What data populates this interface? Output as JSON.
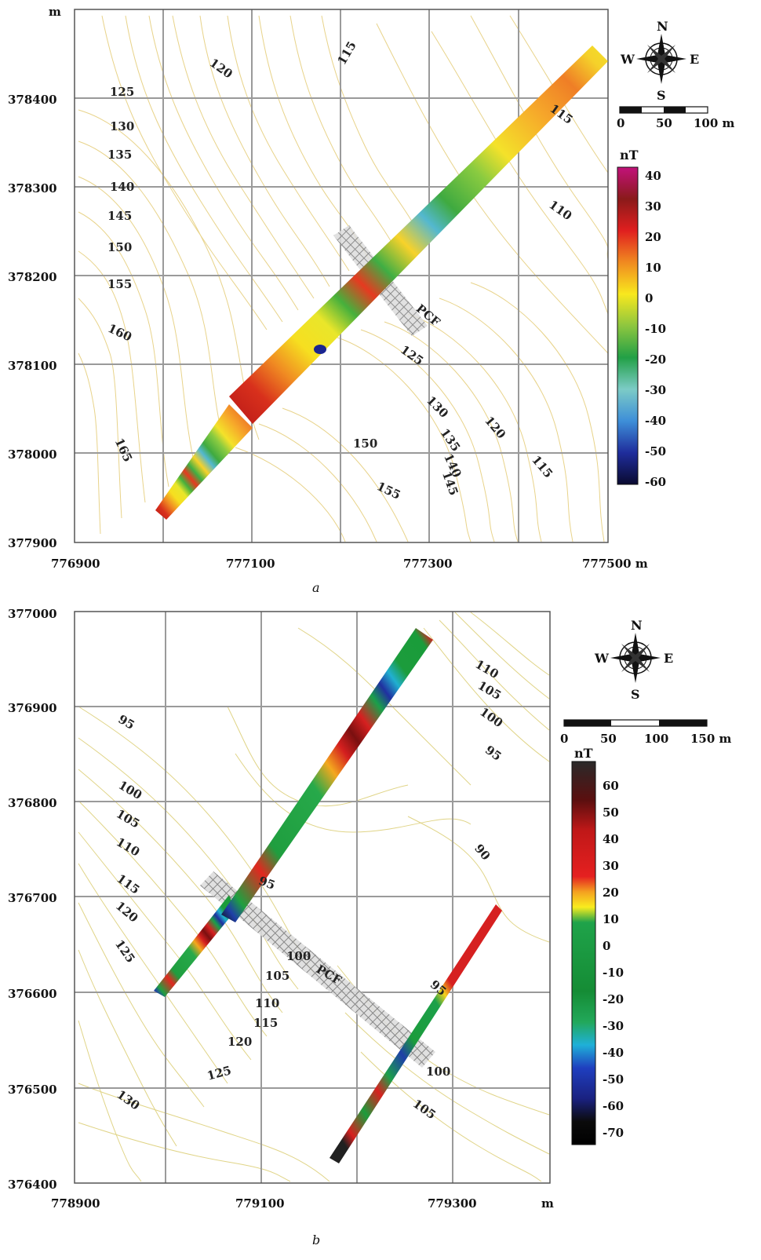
{
  "panels": [
    {
      "caption": "a",
      "x_ticks": [
        "776900",
        "777100",
        "777300",
        "777500 m"
      ],
      "y_ticks": [
        "378400",
        "378300",
        "378200",
        "378100",
        "378000",
        "377900"
      ],
      "y_unit": "m",
      "contour_labels": [
        "120",
        "115",
        "125",
        "130",
        "135",
        "140",
        "145",
        "150",
        "155",
        "160",
        "165",
        "115",
        "110",
        "125",
        "130",
        "135",
        "140",
        "145",
        "120",
        "115",
        "150",
        "155"
      ],
      "survey_label": "PCF",
      "scale_bar": [
        "0",
        "50",
        "100 m"
      ],
      "compass": {
        "n": "N",
        "s": "S",
        "e": "E",
        "w": "W"
      },
      "colorbar": {
        "unit": "nT",
        "ticks": [
          "40",
          "30",
          "20",
          "10",
          "0",
          "-10",
          "-20",
          "-30",
          "-40",
          "-50",
          "-60"
        ]
      }
    },
    {
      "caption": "b",
      "x_ticks": [
        "778900",
        "779100",
        "779300",
        "m"
      ],
      "y_ticks": [
        "377000",
        "376900",
        "376800",
        "376700",
        "376600",
        "376500",
        "376400"
      ],
      "contour_labels": [
        "110",
        "105",
        "100",
        "95",
        "95",
        "100",
        "105",
        "110",
        "115",
        "120",
        "125",
        "90",
        "95",
        "100",
        "105",
        "110",
        "115",
        "120",
        "125",
        "130",
        "95",
        "100",
        "105"
      ],
      "survey_label": "PCF",
      "scale_bar": [
        "0",
        "50",
        "100",
        "150 m"
      ],
      "compass": {
        "n": "N",
        "s": "S",
        "e": "E",
        "w": "W"
      },
      "colorbar": {
        "unit": "nT",
        "ticks": [
          "60",
          "50",
          "40",
          "30",
          "20",
          "10",
          "0",
          "-10",
          "-20",
          "-30",
          "-40",
          "-50",
          "-60",
          "-70"
        ]
      }
    }
  ],
  "colors": {
    "contour": "#e8d38a",
    "grid": "#9a9a9a"
  }
}
